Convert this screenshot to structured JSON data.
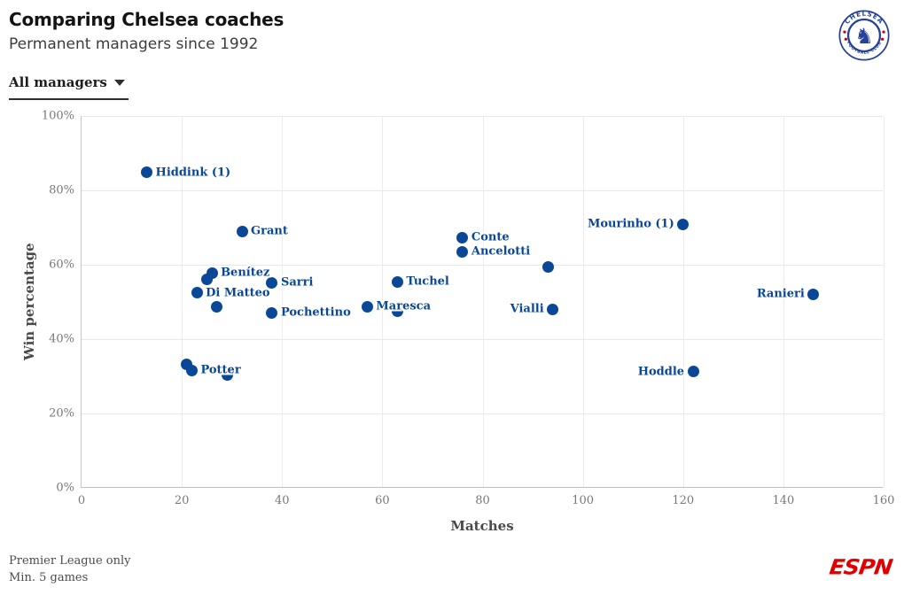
{
  "header": {
    "title": "Comparing Chelsea coaches",
    "subtitle": "Permanent managers since 1992",
    "filter": {
      "label": "All managers"
    },
    "crest": {
      "top_text": "CHELSEA",
      "bottom_text": "FOOTBALL CLUB"
    }
  },
  "footer": {
    "note_line1": "Premier League only",
    "note_line2": "Min. 5 games",
    "brand": "ESPN"
  },
  "colors": {
    "accent": "#0a4796",
    "brand_red": "#e00000",
    "crest_blue": "#26419c",
    "crest_red": "#d40000",
    "grid": "#e8e8e8"
  },
  "chart_data": {
    "type": "scatter",
    "xlabel": "Matches",
    "ylabel": "Win percentage",
    "xlim": [
      0,
      160
    ],
    "ylim": [
      0,
      100
    ],
    "x_ticks": [
      0,
      20,
      40,
      60,
      80,
      100,
      120,
      140,
      160
    ],
    "y_ticks": [
      0,
      20,
      40,
      60,
      80,
      100
    ],
    "y_tick_suffix": "%",
    "grid": true,
    "legend": "none",
    "points": [
      {
        "name": "Hiddink (1)",
        "matches": 13,
        "win_pct": 84.8,
        "label_side": "right"
      },
      {
        "name": "Grant",
        "matches": 32,
        "win_pct": 69.0,
        "label_side": "right"
      },
      {
        "name": "Mourinho (1)",
        "matches": 120,
        "win_pct": 70.9,
        "label_side": "left"
      },
      {
        "name": "Conte",
        "matches": 76,
        "win_pct": 67.3,
        "label_side": "right"
      },
      {
        "name": "Ancelotti",
        "matches": 76,
        "win_pct": 63.5,
        "label_side": "right"
      },
      {
        "name": "",
        "matches": 93,
        "win_pct": 59.3,
        "label_side": "right"
      },
      {
        "name": "Benítez",
        "matches": 26,
        "win_pct": 57.8,
        "label_side": "right"
      },
      {
        "name": "",
        "matches": 25,
        "win_pct": 56.0,
        "label_side": "right"
      },
      {
        "name": "Sarri",
        "matches": 38,
        "win_pct": 55.2,
        "label_side": "right"
      },
      {
        "name": "Tuchel",
        "matches": 63,
        "win_pct": 55.4,
        "label_side": "right"
      },
      {
        "name": "Di Matteo",
        "matches": 23,
        "win_pct": 52.4,
        "label_side": "right"
      },
      {
        "name": "Ranieri",
        "matches": 146,
        "win_pct": 52.1,
        "label_side": "left"
      },
      {
        "name": "",
        "matches": 27,
        "win_pct": 48.6,
        "label_side": "right"
      },
      {
        "name": "Maresca",
        "matches": 57,
        "win_pct": 48.8,
        "label_side": "right"
      },
      {
        "name": "Vialli",
        "matches": 94,
        "win_pct": 48.0,
        "label_side": "left"
      },
      {
        "name": "",
        "matches": 63,
        "win_pct": 47.5,
        "label_side": "right"
      },
      {
        "name": "Pochettino",
        "matches": 38,
        "win_pct": 47.1,
        "label_side": "right"
      },
      {
        "name": "",
        "matches": 21,
        "win_pct": 33.3,
        "label_side": "right"
      },
      {
        "name": "Potter",
        "matches": 22,
        "win_pct": 31.6,
        "label_side": "right"
      },
      {
        "name": "",
        "matches": 29,
        "win_pct": 30.4,
        "label_side": "right"
      },
      {
        "name": "Hoddle",
        "matches": 122,
        "win_pct": 31.2,
        "label_side": "left"
      }
    ]
  }
}
